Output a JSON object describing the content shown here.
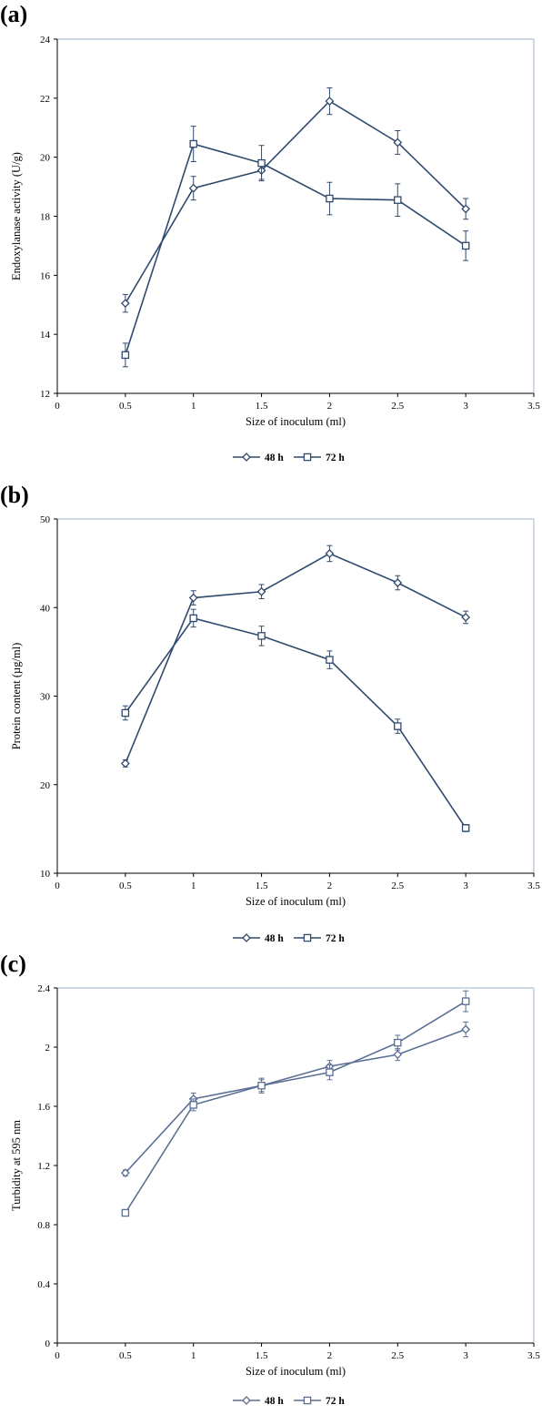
{
  "chart_data": [
    {
      "type": "line",
      "panel_label": "(a)",
      "xlabel": "Size of inoculum (ml)",
      "ylabel": "Endoxylanase activity (U/g)",
      "xlim": [
        0,
        3.5
      ],
      "ylim": [
        12,
        24
      ],
      "xticks": [
        0,
        0.5,
        1,
        1.5,
        2,
        2.5,
        3,
        3.5
      ],
      "yticks": [
        12,
        14,
        16,
        18,
        20,
        22,
        24
      ],
      "x": [
        0.5,
        1,
        1.5,
        2,
        2.5,
        3
      ],
      "series": [
        {
          "name": "48 h",
          "marker": "diamond",
          "color": "#2f4a6e",
          "values": [
            15.05,
            18.95,
            19.55,
            21.9,
            20.5,
            18.25
          ],
          "errors": [
            0.3,
            0.4,
            0.3,
            0.45,
            0.4,
            0.35
          ]
        },
        {
          "name": "72 h",
          "marker": "square",
          "color": "#2f4a6e",
          "values": [
            13.3,
            20.45,
            19.8,
            18.6,
            18.55,
            17.0
          ],
          "errors": [
            0.4,
            0.6,
            0.6,
            0.55,
            0.55,
            0.5
          ]
        }
      ],
      "grid": false,
      "legend": "bottom"
    },
    {
      "type": "line",
      "panel_label": "(b)",
      "xlabel": "Size of inoculum (ml)",
      "ylabel": "Protein content (µg/ml)",
      "xlim": [
        0,
        3.5
      ],
      "ylim": [
        10,
        50
      ],
      "xticks": [
        0,
        0.5,
        1,
        1.5,
        2,
        2.5,
        3,
        3.5
      ],
      "yticks": [
        10,
        20,
        30,
        40,
        50
      ],
      "x": [
        0.5,
        1,
        1.5,
        2,
        2.5,
        3
      ],
      "series": [
        {
          "name": "48 h",
          "marker": "diamond",
          "color": "#2f4a6e",
          "values": [
            22.4,
            41.1,
            41.8,
            46.1,
            42.8,
            38.9
          ],
          "errors": [
            0.4,
            0.8,
            0.8,
            0.9,
            0.8,
            0.7
          ]
        },
        {
          "name": "72 h",
          "marker": "square",
          "color": "#2f4a6e",
          "values": [
            28.1,
            38.8,
            36.8,
            34.1,
            26.6,
            15.1
          ]
        },
        {
          "_err": true
        }
      ],
      "grid": false,
      "legend": "bottom"
    },
    {
      "type": "line",
      "panel_label": "(c)",
      "xlabel": "Size of inoculum (ml)",
      "ylabel": "Turbidity at 595 nm",
      "xlim": [
        0,
        3.5
      ],
      "ylim": [
        0,
        2.4
      ],
      "xticks": [
        0,
        0.5,
        1,
        1.5,
        2,
        2.5,
        3,
        3.5
      ],
      "yticks": [
        0,
        0.4,
        0.8,
        1.2,
        1.6,
        2,
        2.4
      ],
      "x": [
        0.5,
        1,
        1.5,
        2,
        2.5,
        3
      ],
      "series": [
        {
          "name": "48 h",
          "marker": "diamond",
          "color": "#5b6f94",
          "values": [
            1.15,
            1.65,
            1.74,
            1.87,
            1.95,
            2.12
          ],
          "errors": [
            0.02,
            0.04,
            0.04,
            0.04,
            0.04,
            0.05
          ]
        },
        {
          "name": "72 h",
          "marker": "square",
          "color": "#5b6f94",
          "values": [
            0.88,
            1.61,
            1.74,
            1.83,
            2.03,
            2.31
          ],
          "errors": [
            0.02,
            0.04,
            0.05,
            0.05,
            0.05,
            0.07
          ]
        }
      ],
      "grid": false,
      "legend": "bottom"
    }
  ]
}
